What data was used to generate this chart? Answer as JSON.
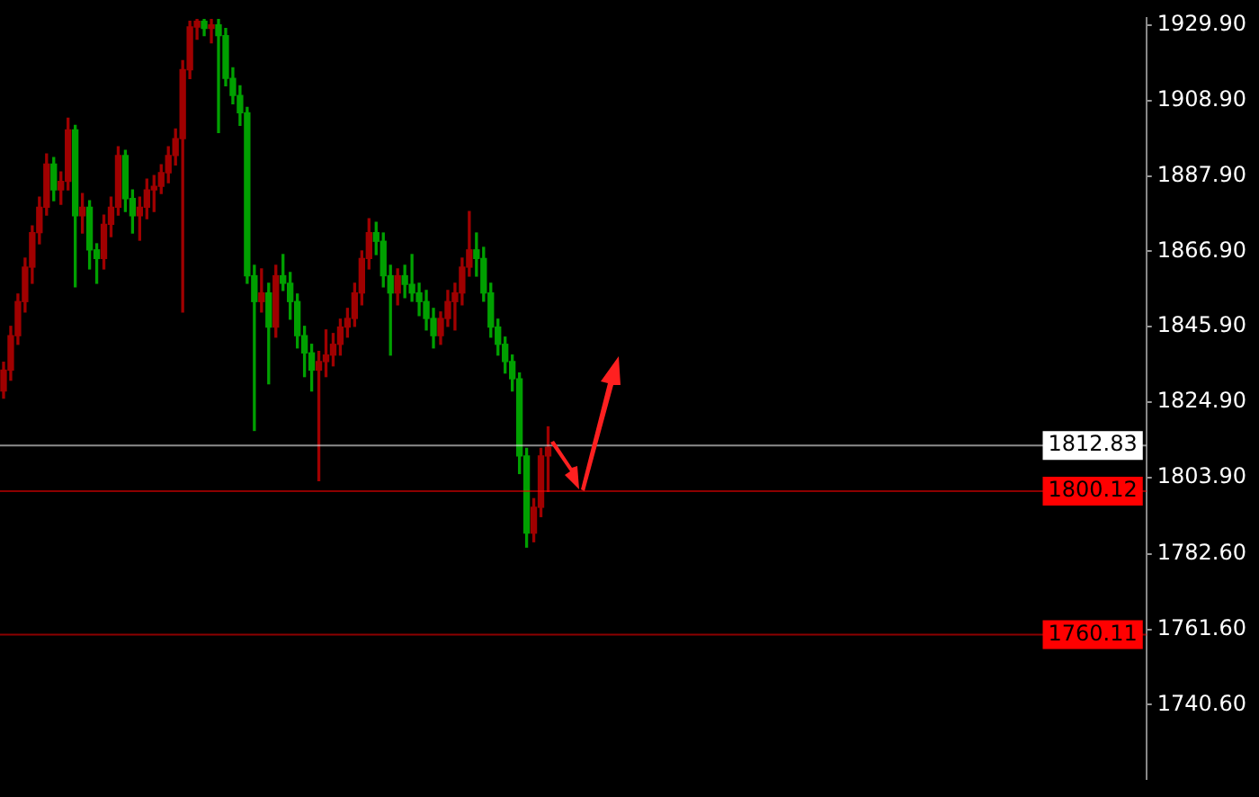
{
  "chart_data": {
    "type": "candlestick",
    "categories": [
      null,
      null,
      null,
      null,
      null,
      null,
      null,
      null,
      null,
      null,
      null,
      null,
      null,
      null,
      null,
      null,
      null,
      null,
      null,
      null,
      null,
      null,
      null,
      null,
      null,
      null,
      null,
      null,
      null,
      null,
      null,
      null,
      null,
      null,
      null,
      null,
      null,
      null,
      null,
      null,
      null,
      null,
      null,
      null,
      null,
      null,
      null,
      null,
      null,
      null,
      null,
      null,
      null,
      null,
      null,
      null,
      null,
      null,
      null,
      null,
      null,
      null,
      null,
      null,
      null,
      null,
      null,
      null,
      null,
      null,
      null,
      null,
      null,
      null,
      null,
      null,
      null,
      null,
      null,
      null,
      null,
      null,
      null,
      null,
      null,
      null,
      null,
      null,
      null,
      null,
      null,
      null,
      null,
      null,
      null,
      null,
      null,
      null,
      null,
      null,
      null,
      null,
      null,
      null,
      null,
      null,
      null,
      null,
      null,
      null,
      null,
      null,
      null,
      null,
      null,
      null,
      null,
      null,
      null,
      null,
      null,
      null,
      null,
      null,
      null,
      null,
      null,
      null,
      null,
      null,
      null,
      null,
      null,
      null,
      null,
      null,
      null,
      null,
      null,
      null,
      null,
      null,
      null,
      null,
      null,
      null,
      null,
      null,
      null,
      null,
      null,
      null,
      null,
      null,
      null,
      null,
      null,
      null,
      null,
      null
    ],
    "ohlc": [
      [
        1828,
        1836,
        1826,
        1833.8
      ],
      [
        1833.8,
        1846,
        1831,
        1843.4
      ],
      [
        1843.4,
        1855,
        1841,
        1852.9
      ],
      [
        1852.9,
        1865,
        1850,
        1862.5
      ],
      [
        1862.5,
        1874,
        1858,
        1872.1
      ],
      [
        1872.1,
        1882,
        1869,
        1879.2
      ],
      [
        1879.2,
        1894,
        1877,
        1891.2
      ],
      [
        1891.2,
        1893,
        1881,
        1884
      ],
      [
        1884,
        1889,
        1880,
        1886.4
      ],
      [
        1886.4,
        1904,
        1884,
        1900.7
      ],
      [
        1900.7,
        1902,
        1857,
        1876.8
      ],
      [
        1876.8,
        1883,
        1872,
        1879.2
      ],
      [
        1879.2,
        1881,
        1862,
        1867.3
      ],
      [
        1867.3,
        1869,
        1858,
        1864.9
      ],
      [
        1864.9,
        1877,
        1862,
        1874.4
      ],
      [
        1874.4,
        1882,
        1871,
        1879.2
      ],
      [
        1879.2,
        1896,
        1877,
        1893.6
      ],
      [
        1893.6,
        1895,
        1878,
        1881.6
      ],
      [
        1881.6,
        1884,
        1872,
        1876.8
      ],
      [
        1876.8,
        1882,
        1870,
        1879.2
      ],
      [
        1879.2,
        1887,
        1876,
        1884
      ],
      [
        1884,
        1888,
        1878,
        1885
      ],
      [
        1885,
        1891,
        1883,
        1888.8
      ],
      [
        1888.8,
        1896,
        1886,
        1893.6
      ],
      [
        1893.6,
        1901,
        1891,
        1898.3
      ],
      [
        1898.3,
        1920,
        1850,
        1917.5
      ],
      [
        1917.5,
        1931,
        1915,
        1929.4
      ],
      [
        1929.4,
        1931.5,
        1926,
        1931
      ],
      [
        1931,
        1931.5,
        1927,
        1929
      ],
      [
        1929,
        1931.5,
        1925,
        1930
      ],
      [
        1930,
        1931.5,
        1900,
        1927
      ],
      [
        1927,
        1929,
        1913,
        1915.1
      ],
      [
        1915.1,
        1918,
        1908,
        1910.3
      ],
      [
        1910.3,
        1913,
        1902,
        1905.5
      ],
      [
        1905.5,
        1907,
        1858,
        1860.1
      ],
      [
        1860.1,
        1863,
        1817,
        1852.9
      ],
      [
        1852.9,
        1862,
        1850,
        1855.3
      ],
      [
        1855.3,
        1858,
        1830,
        1845.8
      ],
      [
        1845.8,
        1863,
        1843,
        1860.1
      ],
      [
        1860.1,
        1866,
        1856,
        1858
      ],
      [
        1858,
        1861,
        1848,
        1852.9
      ],
      [
        1852.9,
        1855,
        1840,
        1843.4
      ],
      [
        1843.4,
        1846,
        1832,
        1838.6
      ],
      [
        1838.6,
        1841,
        1828,
        1833.8
      ],
      [
        1833.8,
        1839,
        1803,
        1836.2
      ],
      [
        1836.2,
        1845,
        1832,
        1838
      ],
      [
        1838,
        1844,
        1835,
        1841
      ],
      [
        1841,
        1848,
        1838,
        1845.8
      ],
      [
        1845.8,
        1851,
        1843,
        1848.2
      ],
      [
        1848.2,
        1858,
        1846,
        1855.3
      ],
      [
        1855.3,
        1867,
        1852,
        1864.9
      ],
      [
        1864.9,
        1876,
        1862,
        1872.1
      ],
      [
        1872.1,
        1875,
        1866,
        1869.7
      ],
      [
        1869.7,
        1872,
        1857,
        1860.1
      ],
      [
        1860.1,
        1863,
        1838,
        1855.3
      ],
      [
        1855.3,
        1862,
        1852,
        1860.1
      ],
      [
        1860.1,
        1863,
        1854,
        1857.7
      ],
      [
        1857.7,
        1866,
        1853,
        1855.3
      ],
      [
        1855.3,
        1858,
        1849,
        1852.9
      ],
      [
        1852.9,
        1856,
        1845,
        1848.2
      ],
      [
        1848.2,
        1851,
        1840,
        1843.4
      ],
      [
        1843.4,
        1850,
        1841,
        1848.2
      ],
      [
        1848.2,
        1856,
        1846,
        1852.9
      ],
      [
        1852.9,
        1858,
        1845,
        1855.3
      ],
      [
        1855.3,
        1865,
        1852,
        1862.5
      ],
      [
        1862.5,
        1878,
        1860,
        1867.3
      ],
      [
        1867.3,
        1872,
        1860,
        1864.9
      ],
      [
        1864.9,
        1868,
        1853,
        1855.3
      ],
      [
        1855.3,
        1858,
        1843,
        1845.8
      ],
      [
        1845.8,
        1848,
        1838,
        1841
      ],
      [
        1841,
        1843,
        1833,
        1836.2
      ],
      [
        1836.2,
        1838,
        1828,
        1831.4
      ],
      [
        1831.4,
        1833,
        1805,
        1809.9
      ],
      [
        1809.9,
        1812,
        1784.5,
        1788.4
      ],
      [
        1788.4,
        1798,
        1786,
        1795.6
      ],
      [
        1795.6,
        1812,
        1793,
        1809.9
      ],
      [
        1809.9,
        1818,
        1800,
        1812.3
      ],
      null,
      null,
      null,
      null,
      null,
      null,
      null,
      null,
      null,
      null,
      null,
      null,
      null,
      null,
      null,
      null,
      null,
      null,
      null,
      null,
      null,
      null,
      null,
      null,
      null,
      null,
      null,
      null,
      null,
      null,
      null,
      null,
      null,
      null,
      null,
      null,
      null,
      null,
      null,
      null,
      null,
      null,
      null,
      null,
      null,
      null,
      null,
      null,
      null,
      null,
      null,
      null,
      null,
      null,
      null,
      null,
      null,
      null,
      null,
      null,
      null,
      null,
      null,
      null,
      null,
      null,
      null,
      null,
      null,
      null,
      null,
      null,
      null,
      null,
      null,
      null,
      null,
      null,
      null,
      null,
      null,
      null,
      null
    ],
    "colors": [
      "#a00000",
      "#a00000",
      "#a00000",
      "#a00000",
      "#a00000",
      "#a00000",
      "#a00000",
      "#00a000",
      "#a00000",
      "#a00000",
      "#00a000",
      "#a00000",
      "#00a000",
      "#00a000",
      "#a00000",
      "#a00000",
      "#a00000",
      "#00a000",
      "#00a000",
      "#a00000",
      "#a00000",
      "#a00000",
      "#a00000",
      "#a00000",
      "#a00000",
      "#a00000",
      "#a00000",
      "#a00000",
      "#00a000",
      "#a00000",
      "#00a000",
      "#00a000",
      "#00a000",
      "#00a000",
      "#00a000",
      "#00a000",
      "#a00000",
      "#00a000",
      "#a00000",
      "#00a000",
      "#00a000",
      "#00a000",
      "#00a000",
      "#00a000",
      "#a00000",
      "#a00000",
      "#a00000",
      "#a00000",
      "#a00000",
      "#a00000",
      "#a00000",
      "#a00000",
      "#00a000",
      "#00a000",
      "#00a000",
      "#a00000",
      "#00a000",
      "#00a000",
      "#00a000",
      "#00a000",
      "#00a000",
      "#a00000",
      "#a00000",
      "#a00000",
      "#a00000",
      "#a00000",
      "#00a000",
      "#00a000",
      "#00a000",
      "#00a000",
      "#00a000",
      "#00a000",
      "#00a000",
      "#00a000",
      "#a00000",
      "#a00000",
      "#a00000",
      null,
      null,
      null,
      null,
      null,
      null,
      null,
      null,
      null,
      null,
      null,
      null,
      null,
      null,
      null,
      null,
      null,
      null,
      null,
      null,
      null,
      null,
      null,
      null,
      null,
      null,
      null,
      null,
      null,
      null,
      null,
      null,
      null,
      null,
      null,
      null,
      null,
      null,
      null,
      null,
      null,
      null,
      null,
      null,
      null,
      null,
      null,
      null,
      null,
      null,
      null,
      null,
      null,
      null,
      null,
      null,
      null,
      null,
      null,
      null,
      null,
      null,
      null,
      null,
      null,
      null,
      null,
      null,
      null,
      null,
      null,
      null,
      null,
      null,
      null,
      null,
      null,
      null,
      null,
      null,
      null,
      null,
      null
    ],
    "ylim": [
      1720,
      1931.8
    ],
    "yticks": [
      {
        "value": 1929.9,
        "label": "1929.90"
      },
      {
        "value": 1908.9,
        "label": "1908.90"
      },
      {
        "value": 1887.9,
        "label": "1887.90"
      },
      {
        "value": 1866.9,
        "label": "1866.90"
      },
      {
        "value": 1845.9,
        "label": "1845.90"
      },
      {
        "value": 1824.9,
        "label": "1824.90"
      },
      {
        "value": 1803.9,
        "label": "1803.90"
      },
      {
        "value": 1782.6,
        "label": "1782.60"
      },
      {
        "value": 1761.6,
        "label": "1761.60"
      },
      {
        "value": 1740.6,
        "label": "1740.60"
      }
    ],
    "ref_lines": [
      {
        "axis": "y",
        "value": 1812.83,
        "label": "1812.83",
        "color": "#ffffff"
      },
      {
        "axis": "y",
        "value": 1800.12,
        "label": "1800.12",
        "color": "#ff0000"
      },
      {
        "axis": "y",
        "value": 1760.11,
        "label": "1760.11",
        "color": "#ff0000"
      }
    ],
    "tick_labels": "y"
  }
}
